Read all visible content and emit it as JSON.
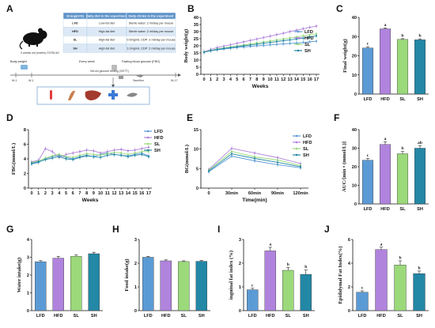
{
  "colors": {
    "LFD": "#5b9bd5",
    "HFD": "#b083dd",
    "SL": "#9bd97a",
    "SH": "#2387a6",
    "header_bg": "#5f93c9",
    "row_bg": "#dce8f5"
  },
  "panel_labels": [
    "A",
    "B",
    "C",
    "D",
    "E",
    "F",
    "G",
    "H",
    "I",
    "J"
  ],
  "schematic": {
    "mouse_caption": "4 weeks old (males) C57BL/6J",
    "table_headers": [
      "Group(n=6)",
      "Daily diet in the experiment",
      "Daily drinks in the experiment"
    ],
    "table_rows": [
      [
        "LFD",
        "Low-fat diet",
        "Sterile water: 2 ml/day per mouse"
      ],
      [
        "HFD",
        "High-fat diet",
        "Sterile water: 2 ml/day per mouse"
      ],
      [
        "SL",
        "High-fat diet",
        "0.5mg/mL CDP: 2 ml/day per mouse"
      ],
      [
        "SH",
        "High-fat diet",
        "1.0mg/mL CDP: 2 ml/day per mouse"
      ]
    ],
    "timeline_labels": [
      "Body weight",
      "Every week",
      "Fasting blood glucose (FBG)"
    ],
    "week_start_a": "W-1",
    "week_start_b": "W-1",
    "week_end": "W-17",
    "timeline_tiny_labels": [
      "Serum glucose testing (OGTT)",
      "Sacrifice"
    ],
    "icon_names": [
      "blood-tube-icon",
      "intestine-icon",
      "liver-icon",
      "cross-icon",
      "fat-icon"
    ]
  },
  "chart_data": [
    {
      "panel": "B",
      "type": "line",
      "xlabel": "Weeks",
      "ylabel": "Body weight(g)",
      "ylim": [
        0,
        40
      ],
      "yticks": [
        0,
        5,
        10,
        15,
        20,
        25,
        30,
        35,
        40
      ],
      "x": [
        0,
        1,
        2,
        3,
        4,
        5,
        6,
        7,
        8,
        9,
        10,
        11,
        12,
        13,
        14,
        15,
        16,
        17
      ],
      "legend": [
        "LFD",
        "HFD",
        "SL",
        "SH"
      ],
      "legend_position": "right",
      "series": [
        {
          "name": "LFD",
          "values": [
            15.5,
            16.5,
            17.2,
            17.8,
            18.3,
            18.8,
            19.2,
            19.6,
            20.0,
            20.3,
            20.7,
            21.0,
            21.4,
            21.7,
            22.0,
            22.4,
            22.8,
            23.3
          ]
        },
        {
          "name": "HFD",
          "values": [
            15.8,
            17.5,
            18.8,
            19.8,
            20.8,
            21.8,
            22.8,
            23.8,
            24.8,
            25.8,
            26.8,
            27.9,
            28.8,
            30.0,
            31.0,
            32.0,
            33.0,
            33.8
          ]
        },
        {
          "name": "SL",
          "values": [
            15.6,
            16.8,
            17.8,
            18.5,
            19.2,
            19.9,
            20.6,
            21.3,
            22.0,
            22.7,
            23.4,
            24.1,
            24.8,
            25.5,
            26.2,
            27.0,
            27.7,
            28.4
          ]
        },
        {
          "name": "SH",
          "values": [
            15.5,
            16.6,
            17.5,
            18.2,
            18.8,
            19.4,
            20.0,
            20.6,
            21.2,
            21.8,
            22.4,
            23.0,
            23.6,
            24.2,
            24.8,
            25.4,
            26.2,
            27.0
          ]
        }
      ]
    },
    {
      "panel": "C",
      "type": "bar",
      "ylabel": "Final weight(g)",
      "ylim": [
        0,
        40
      ],
      "yticks": [
        0,
        10,
        20,
        30,
        40
      ],
      "categories": [
        "LFD",
        "HFD",
        "SL",
        "SH"
      ],
      "values": [
        24.0,
        34.0,
        28.5,
        28.3
      ],
      "errors": [
        0.7,
        0.5,
        0.4,
        0.5
      ],
      "sig": [
        "c",
        "a",
        "b",
        "b"
      ]
    },
    {
      "panel": "D",
      "type": "line",
      "xlabel": "Weeks",
      "ylabel": "FBG(mmol/L)",
      "ylim": [
        0,
        8
      ],
      "yticks": [
        0,
        2,
        4,
        6,
        8
      ],
      "x": [
        0,
        1,
        2,
        3,
        4,
        5,
        6,
        7,
        8,
        9,
        10,
        11,
        12,
        13,
        14,
        15,
        16,
        17
      ],
      "legend": [
        "LFD",
        "HFD",
        "SL",
        "SH"
      ],
      "legend_position": "right",
      "series": [
        {
          "name": "LFD",
          "values": [
            3.3,
            3.5,
            4.0,
            4.3,
            4.5,
            4.2,
            4.0,
            4.3,
            4.5,
            4.3,
            4.6,
            4.8,
            4.6,
            4.5,
            4.4,
            4.6,
            4.8,
            4.4
          ]
        },
        {
          "name": "HFD",
          "values": [
            3.6,
            3.8,
            5.4,
            5.0,
            4.2,
            4.6,
            4.8,
            5.0,
            5.2,
            5.1,
            4.8,
            5.0,
            5.2,
            5.3,
            5.1,
            5.2,
            5.4,
            5.6
          ]
        },
        {
          "name": "SL",
          "values": [
            3.5,
            3.7,
            4.1,
            4.4,
            4.6,
            4.3,
            4.2,
            4.5,
            4.7,
            4.6,
            4.5,
            4.7,
            4.9,
            4.8,
            4.6,
            4.8,
            5.0,
            5.0
          ]
        },
        {
          "name": "SH",
          "values": [
            3.4,
            3.6,
            3.9,
            4.1,
            4.3,
            4.0,
            3.9,
            4.2,
            4.4,
            4.3,
            4.2,
            4.5,
            4.6,
            4.5,
            4.3,
            4.5,
            4.6,
            4.3
          ]
        }
      ]
    },
    {
      "panel": "E",
      "type": "line",
      "xlabel": "Time(min)",
      "ylabel": "BG(mmol/L)",
      "ylim": [
        0,
        15
      ],
      "yticks": [
        0,
        5,
        10,
        15
      ],
      "categories": [
        "0",
        "30min",
        "60min",
        "90min",
        "120min"
      ],
      "legend": [
        "LFD",
        "HFD",
        "SL",
        "SH"
      ],
      "legend_position": "right",
      "series": [
        {
          "name": "LFD",
          "values": [
            4.2,
            8.2,
            7.0,
            6.0,
            5.2
          ]
        },
        {
          "name": "HFD",
          "values": [
            4.8,
            10.2,
            9.0,
            7.8,
            6.3
          ]
        },
        {
          "name": "SL",
          "values": [
            4.6,
            9.4,
            8.0,
            7.2,
            5.8
          ]
        },
        {
          "name": "SH",
          "values": [
            4.4,
            8.8,
            7.6,
            6.6,
            5.5
          ]
        }
      ]
    },
    {
      "panel": "F",
      "type": "bar",
      "ylabel": "AUC/[min • (mmol/L)]",
      "ylim": [
        0,
        40
      ],
      "yticks": [
        0,
        10,
        20,
        30,
        40
      ],
      "categories": [
        "LFD",
        "HFD",
        "SL",
        "SH"
      ],
      "values": [
        23.5,
        32.0,
        27.0,
        30.0
      ],
      "errors": [
        1.0,
        1.5,
        1.2,
        1.3
      ],
      "sig": [
        "c",
        "a",
        "b",
        "ab"
      ]
    },
    {
      "panel": "G",
      "type": "bar",
      "ylabel": "Water intake(g)",
      "ylim": [
        0,
        4
      ],
      "yticks": [
        0,
        1,
        2,
        3,
        4
      ],
      "categories": [
        "LFD",
        "HFD",
        "SL",
        "SH"
      ],
      "values": [
        2.75,
        2.95,
        3.05,
        3.2
      ],
      "errors": [
        0.06,
        0.1,
        0.08,
        0.08
      ],
      "sig": []
    },
    {
      "panel": "H",
      "type": "bar",
      "ylabel": "Food intake(g)",
      "ylim": [
        0,
        3
      ],
      "yticks": [
        0,
        1,
        2,
        3
      ],
      "categories": [
        "LFD",
        "HFD",
        "SL",
        "SH"
      ],
      "values": [
        2.25,
        2.1,
        2.07,
        2.08
      ],
      "errors": [
        0.04,
        0.04,
        0.03,
        0.04
      ],
      "sig": []
    },
    {
      "panel": "I",
      "type": "bar",
      "ylabel": "inguinal fat index (%)",
      "ylim": [
        0,
        3
      ],
      "yticks": [
        0,
        1,
        2,
        3
      ],
      "categories": [
        "LFD",
        "HFD",
        "SL",
        "SH"
      ],
      "values": [
        0.88,
        2.52,
        1.7,
        1.53
      ],
      "errors": [
        0.06,
        0.15,
        0.12,
        0.18
      ],
      "sig": [
        "c",
        "a",
        "b",
        "b"
      ]
    },
    {
      "panel": "J",
      "type": "bar",
      "ylabel": "Epididymal Fat Index(%)",
      "ylim": [
        0,
        6
      ],
      "yticks": [
        0,
        2,
        4,
        6
      ],
      "categories": [
        "LFD",
        "HFD",
        "SL",
        "SH"
      ],
      "values": [
        1.55,
        5.15,
        3.85,
        3.12
      ],
      "errors": [
        0.12,
        0.2,
        0.35,
        0.22
      ],
      "sig": [
        "c",
        "a",
        "b",
        "b"
      ]
    }
  ]
}
